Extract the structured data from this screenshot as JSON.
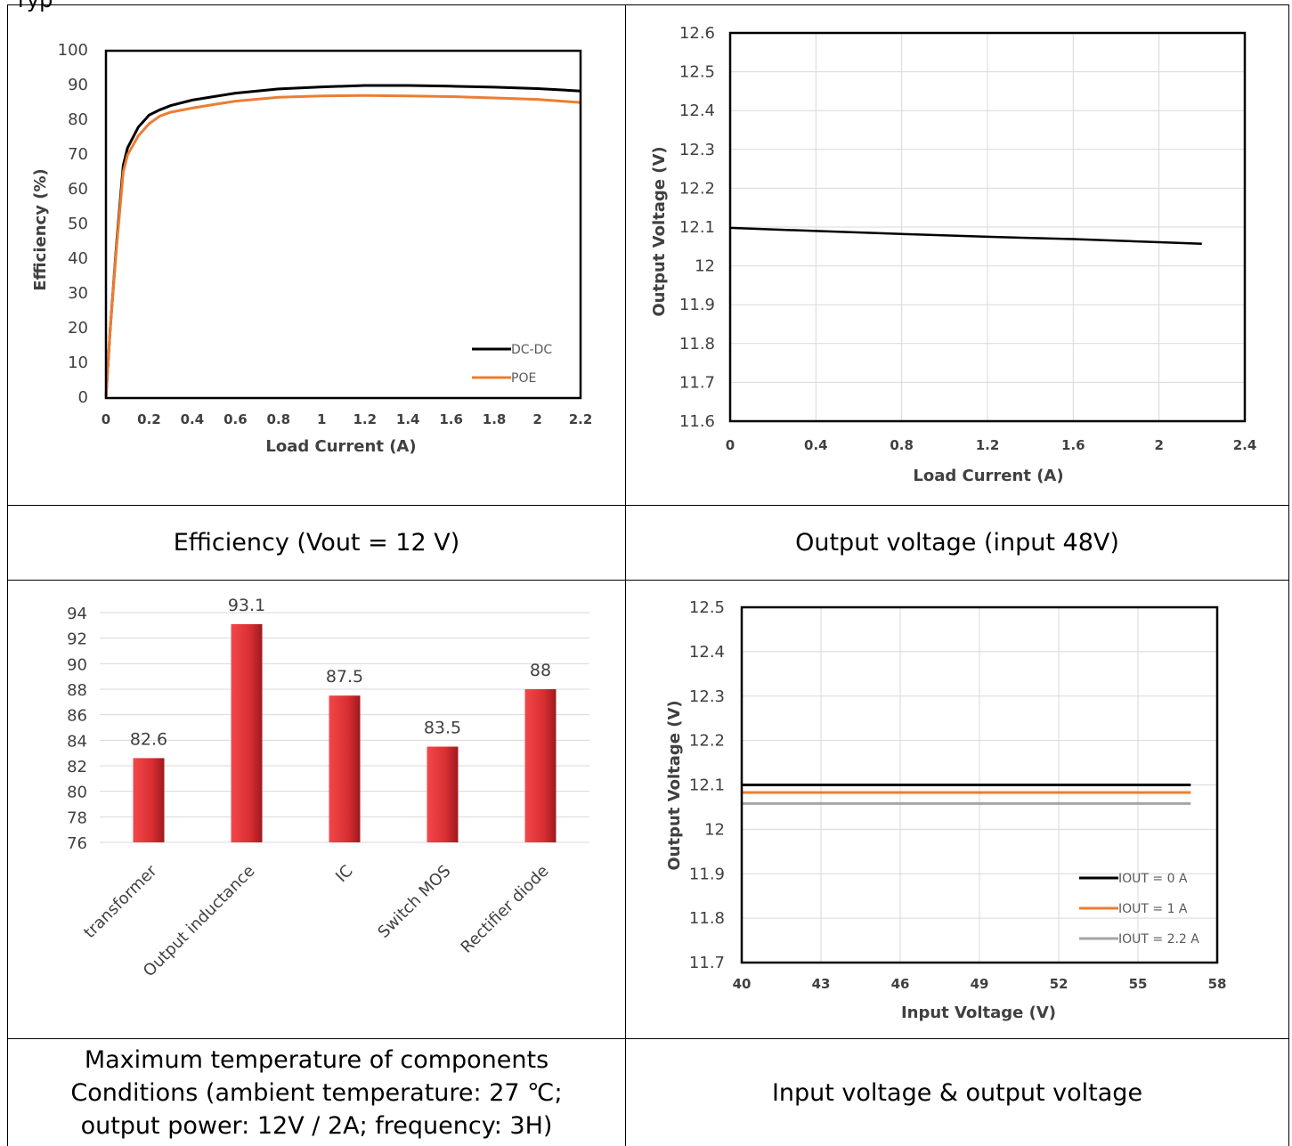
{
  "header_fragment": "ryp",
  "captions": {
    "c1": "Efficiency (Vout = 12 V)",
    "c2": "Output voltage (input 48V)",
    "c3_l1": "Maximum temperature of components",
    "c3_l2": "Conditions (ambient temperature: 27 ℃;",
    "c3_l3": "output power: 12V / 2A; frequency: 3H)",
    "c4": "Input voltage & output voltage"
  },
  "colors": {
    "black_series": "#000000",
    "orange_series": "#ED7D31",
    "gray_series": "#A5A5A5",
    "bar": "#E8383A",
    "grid": "#D9D9D9"
  },
  "chart_data": [
    {
      "type": "line",
      "title": "",
      "xlabel": "Load Current (A)",
      "ylabel": "Efficiency (%)",
      "xlim": [
        0,
        2.2
      ],
      "ylim": [
        0,
        100
      ],
      "x_ticks": [
        "0",
        "0.2",
        "0.4",
        "0.6",
        "0.8",
        "1",
        "1.2",
        "1.4",
        "1.6",
        "1.8",
        "2",
        "2.2"
      ],
      "y_ticks": [
        "0",
        "10",
        "20",
        "30",
        "40",
        "50",
        "60",
        "70",
        "80",
        "90",
        "100"
      ],
      "grid": false,
      "legend": "bottom-right",
      "series": [
        {
          "name": "DC-DC",
          "x": [
            0,
            0.02,
            0.05,
            0.08,
            0.1,
            0.15,
            0.2,
            0.25,
            0.3,
            0.4,
            0.5,
            0.6,
            0.8,
            1.0,
            1.2,
            1.4,
            1.6,
            1.8,
            2.0,
            2.2
          ],
          "y": [
            0,
            20,
            45,
            67,
            72,
            78,
            81.5,
            83,
            84.2,
            85.8,
            86.8,
            87.8,
            89,
            89.6,
            90,
            90,
            89.8,
            89.5,
            89.1,
            88.4
          ]
        },
        {
          "name": "POE",
          "x": [
            0,
            0.02,
            0.05,
            0.08,
            0.1,
            0.15,
            0.2,
            0.25,
            0.3,
            0.4,
            0.5,
            0.6,
            0.8,
            1.0,
            1.2,
            1.4,
            1.6,
            1.8,
            2.0,
            2.2
          ],
          "y": [
            0,
            20,
            44,
            65,
            70,
            75.5,
            79,
            81.2,
            82.3,
            83.5,
            84.5,
            85.5,
            86.6,
            87,
            87.1,
            87,
            86.8,
            86.4,
            86,
            85.1
          ]
        }
      ]
    },
    {
      "type": "line",
      "title": "",
      "xlabel": "Load Current (A)",
      "ylabel": "Output Voltage (V)",
      "xlim": [
        0,
        2.4
      ],
      "ylim": [
        11.6,
        12.6
      ],
      "x_ticks": [
        "0",
        "0.4",
        "0.8",
        "1.2",
        "1.6",
        "2",
        "2.4"
      ],
      "y_ticks": [
        "11.6",
        "11.7",
        "11.8",
        "11.9",
        "12",
        "12.1",
        "12.2",
        "12.3",
        "12.4",
        "12.5",
        "12.6"
      ],
      "grid": true,
      "series": [
        {
          "x": [
            0,
            0.4,
            0.8,
            1.2,
            1.6,
            2.0,
            2.2
          ],
          "y": [
            12.098,
            12.09,
            12.082,
            12.075,
            12.069,
            12.061,
            12.057
          ]
        }
      ]
    },
    {
      "type": "bar",
      "title": "",
      "categories": [
        "transformer",
        "Output inductance",
        "IC",
        "Switch MOS",
        "Rectifier diode"
      ],
      "values": [
        82.6,
        93.1,
        87.5,
        83.5,
        88
      ],
      "data_labels": [
        "82.6",
        "93.1",
        "87.5",
        "83.5",
        "88"
      ],
      "ylim": [
        76,
        94
      ],
      "y_ticks": [
        "76",
        "78",
        "80",
        "82",
        "84",
        "86",
        "88",
        "90",
        "92",
        "94"
      ],
      "grid": true
    },
    {
      "type": "line",
      "title": "",
      "xlabel": "Input Voltage (V)",
      "ylabel": "Output Voltage (V)",
      "xlim": [
        40,
        58
      ],
      "ylim": [
        11.7,
        12.5
      ],
      "x_ticks": [
        "40",
        "43",
        "46",
        "49",
        "52",
        "55",
        "58"
      ],
      "y_ticks": [
        "11.7",
        "11.8",
        "11.9",
        "12",
        "12.1",
        "12.2",
        "12.3",
        "12.4",
        "12.5"
      ],
      "grid": true,
      "legend": "bottom-right",
      "series": [
        {
          "name": "IOUT = 0 A",
          "x": [
            40,
            57
          ],
          "y": [
            12.1,
            12.1
          ]
        },
        {
          "name": "IOUT = 1 A",
          "x": [
            40,
            57
          ],
          "y": [
            12.083,
            12.083
          ]
        },
        {
          "name": "IOUT = 2.2 A",
          "x": [
            40,
            57
          ],
          "y": [
            12.058,
            12.058
          ]
        }
      ]
    }
  ]
}
